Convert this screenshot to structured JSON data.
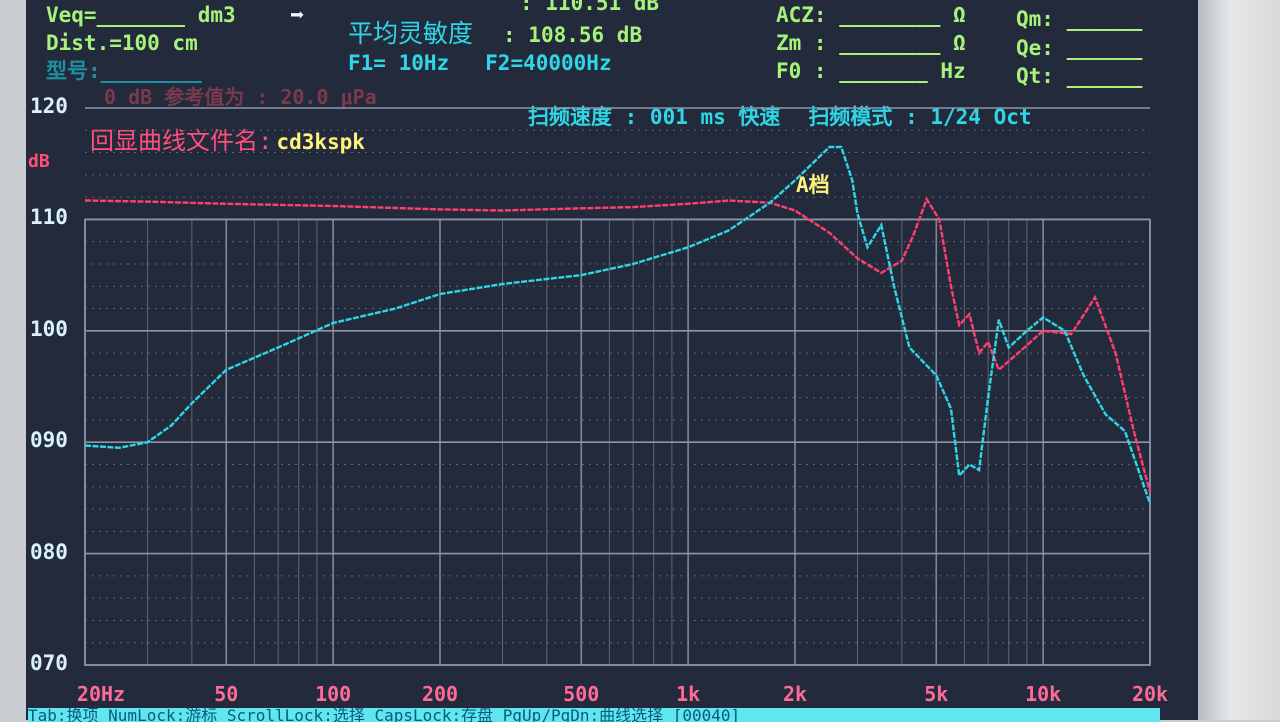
{
  "header": {
    "veq_label": "Veq=_______ dm3",
    "arrow": "➡",
    "dist_label": "Dist.=100 cm",
    "model_label": "型号:________",
    "sens_top": ": 110.51 dB",
    "avg_sens_label": "平均灵敏度",
    "avg_sens_value": ": 108.56 dB",
    "f1": "F1=    10Hz",
    "f2": "F2=40000Hz",
    "acz": "ACZ:  ________ Ω",
    "zm": "Zm :  ________ Ω",
    "f0": "F0 :  _______ Hz",
    "qm": "Qm: ______",
    "qe": "Qe: ______",
    "qt": "Qt: ______",
    "ref_label": "0 dB 参考值为 : 20.0 μPa",
    "sweep_speed": "扫频速度 : 001 ms 快速",
    "sweep_mode": "扫频模式 : 1/24 Oct",
    "file_label": "回显曲线文件名:",
    "file_name": "cd3kspk",
    "a_label": "A档"
  },
  "status_bar": "Tab:换项 NumLock:游标 ScrollLock:选择 CapsLock:存盘 PgUp/PgDn:曲线选择    [00040]",
  "colors": {
    "background": "#232a3c",
    "series_red": "#ff3f6e",
    "series_cyan": "#2fd6e6"
  },
  "chart_data": {
    "type": "line",
    "xscale": "log",
    "xlabel": "",
    "ylabel": "dB",
    "xlim": [
      20,
      20000
    ],
    "ylim": [
      70,
      120
    ],
    "grid": true,
    "x_ticks": [
      "20Hz",
      "50",
      "100",
      "200",
      "500",
      "1k",
      "2k",
      "5k",
      "10k",
      "20k"
    ],
    "x_tick_values": [
      20,
      50,
      100,
      200,
      500,
      1000,
      2000,
      5000,
      10000,
      20000
    ],
    "y_ticks": [
      "120",
      "110",
      "100",
      "090",
      "080",
      "070"
    ],
    "y_tick_values": [
      120,
      110,
      100,
      90,
      80,
      70
    ],
    "series": [
      {
        "color": "#ff3f6e",
        "points": [
          [
            20,
            111.7
          ],
          [
            30,
            111.6
          ],
          [
            50,
            111.4
          ],
          [
            100,
            111.2
          ],
          [
            200,
            110.9
          ],
          [
            300,
            110.8
          ],
          [
            500,
            111.0
          ],
          [
            700,
            111.1
          ],
          [
            1000,
            111.4
          ],
          [
            1300,
            111.7
          ],
          [
            1700,
            111.5
          ],
          [
            2000,
            110.8
          ],
          [
            2500,
            108.8
          ],
          [
            3000,
            106.5
          ],
          [
            3500,
            105.2
          ],
          [
            4000,
            106.3
          ],
          [
            4300,
            108.5
          ],
          [
            4700,
            111.8
          ],
          [
            5100,
            110
          ],
          [
            5500,
            104
          ],
          [
            5800,
            100.5
          ],
          [
            6200,
            101.5
          ],
          [
            6600,
            98
          ],
          [
            7000,
            99
          ],
          [
            7500,
            96.5
          ],
          [
            8500,
            98
          ],
          [
            10000,
            100
          ],
          [
            12000,
            99.7
          ],
          [
            14000,
            103
          ],
          [
            16000,
            98
          ],
          [
            18000,
            91
          ],
          [
            20000,
            85.5
          ]
        ]
      },
      {
        "color": "#2fd6e6",
        "points": [
          [
            20,
            89.7
          ],
          [
            25,
            89.5
          ],
          [
            30,
            90
          ],
          [
            35,
            91.5
          ],
          [
            40,
            93.5
          ],
          [
            50,
            96.5
          ],
          [
            70,
            98.5
          ],
          [
            100,
            100.7
          ],
          [
            150,
            102
          ],
          [
            200,
            103.3
          ],
          [
            300,
            104.2
          ],
          [
            500,
            105
          ],
          [
            700,
            106
          ],
          [
            1000,
            107.5
          ],
          [
            1300,
            109
          ],
          [
            1700,
            111.5
          ],
          [
            2000,
            113.5
          ],
          [
            2500,
            116.5
          ],
          [
            2700,
            116.5
          ],
          [
            2900,
            113.5
          ],
          [
            3000,
            110.5
          ],
          [
            3200,
            107.5
          ],
          [
            3500,
            109.5
          ],
          [
            3800,
            104
          ],
          [
            4200,
            98.5
          ],
          [
            5000,
            96
          ],
          [
            5500,
            93
          ],
          [
            5800,
            87
          ],
          [
            6200,
            88
          ],
          [
            6600,
            87.5
          ],
          [
            7000,
            94
          ],
          [
            7500,
            101
          ],
          [
            8000,
            98.5
          ],
          [
            9000,
            100
          ],
          [
            10000,
            101.2
          ],
          [
            11500,
            100
          ],
          [
            13000,
            96
          ],
          [
            15000,
            92.5
          ],
          [
            17000,
            91
          ],
          [
            20000,
            84.5
          ]
        ]
      }
    ]
  }
}
